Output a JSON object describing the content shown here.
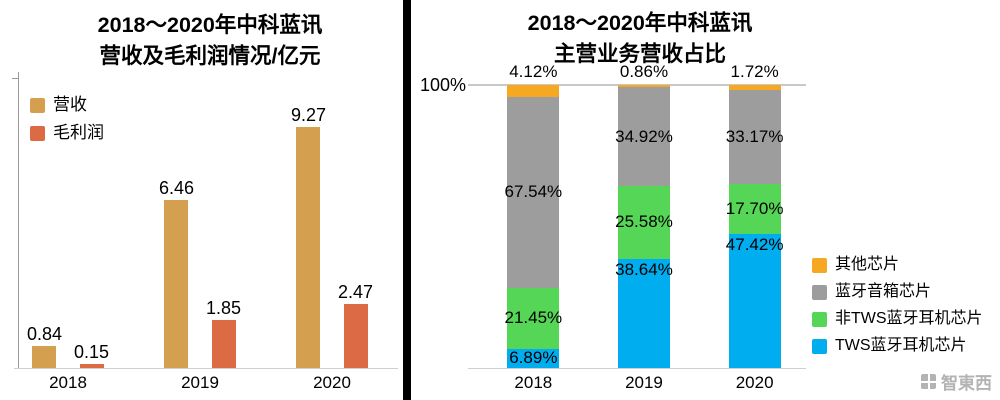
{
  "left_chart": {
    "title_line1": "2018～2020年中科蓝讯",
    "title_line2": "营收及毛利润情况/亿元",
    "chart_data": {
      "type": "bar",
      "categories": [
        "2018",
        "2019",
        "2020"
      ],
      "series": [
        {
          "name": "营收",
          "color": "#D4A04F",
          "values": [
            0.84,
            6.46,
            9.27
          ]
        },
        {
          "name": "毛利润",
          "color": "#DB6A45",
          "values": [
            0.15,
            1.85,
            2.47
          ]
        }
      ],
      "unit": "亿元",
      "ylim": [
        0,
        10
      ],
      "grid": false,
      "legend_position": "top-left",
      "value_labels": "above-bar"
    }
  },
  "right_chart": {
    "title_line1": "2018～2020年中科蓝讯",
    "title_line2": "主营业务营收占比",
    "y_axis_top_label": "100%",
    "chart_data": {
      "type": "stacked-bar-100",
      "categories": [
        "2018",
        "2019",
        "2020"
      ],
      "series": [
        {
          "name": "TWS蓝牙耳机芯片",
          "color": "#00AEEF",
          "values": [
            6.89,
            38.64,
            47.42
          ],
          "label_anchor": "top"
        },
        {
          "name": "非TWS蓝牙耳机芯片",
          "color": "#56D656",
          "values": [
            21.45,
            25.58,
            17.7
          ],
          "label_anchor": "center"
        },
        {
          "name": "蓝牙音箱芯片",
          "color": "#9D9D9D",
          "values": [
            67.54,
            34.92,
            33.17
          ],
          "label_anchor": "center"
        },
        {
          "name": "其他芯片",
          "color": "#F7A823",
          "values": [
            4.12,
            0.86,
            1.72
          ],
          "label_anchor": "center"
        }
      ],
      "ylim_percent": [
        0,
        100
      ],
      "grid": "top-line-only",
      "legend_position": "right",
      "legend_order_top_to_bottom": [
        "其他芯片",
        "蓝牙音箱芯片",
        "非TWS蓝牙耳机芯片",
        "TWS蓝牙耳机芯片"
      ]
    }
  },
  "watermark": {
    "text": "智東西"
  }
}
